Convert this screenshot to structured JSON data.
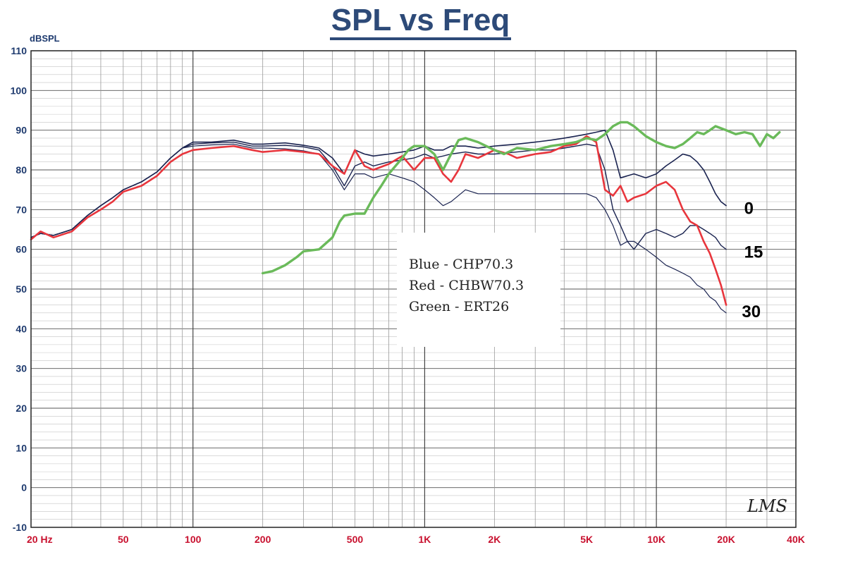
{
  "chart_data": {
    "type": "line",
    "title": "SPL vs Freq",
    "ylabel": "dBSPL",
    "xlabel": "",
    "xscale": "log",
    "xlim": [
      20,
      40000
    ],
    "ylim": [
      -10,
      110
    ],
    "grid": true,
    "y_ticks": [
      {
        "value": 110,
        "label": "110"
      },
      {
        "value": 100,
        "label": "100"
      },
      {
        "value": 90,
        "label": "90"
      },
      {
        "value": 80,
        "label": "80"
      },
      {
        "value": 70,
        "label": "70"
      },
      {
        "value": 60,
        "label": "60"
      },
      {
        "value": 50,
        "label": "50"
      },
      {
        "value": 40,
        "label": "40"
      },
      {
        "value": 30,
        "label": "30"
      },
      {
        "value": 20,
        "label": "20"
      },
      {
        "value": 10,
        "label": "10"
      },
      {
        "value": 0,
        "label": "0"
      },
      {
        "value": -10,
        "label": "-10"
      }
    ],
    "x_ticks": [
      {
        "value": 20,
        "label": "20 Hz"
      },
      {
        "value": 50,
        "label": "50"
      },
      {
        "value": 100,
        "label": "100"
      },
      {
        "value": 200,
        "label": "200"
      },
      {
        "value": 500,
        "label": "500"
      },
      {
        "value": 1000,
        "label": "1K"
      },
      {
        "value": 2000,
        "label": "2K"
      },
      {
        "value": 5000,
        "label": "5K"
      },
      {
        "value": 10000,
        "label": "10K"
      },
      {
        "value": 20000,
        "label": "20K"
      },
      {
        "value": 40000,
        "label": "40K"
      }
    ],
    "legend_lines": [
      "Blue - CHP70.3",
      "Red - CHBW70.3",
      "Green - ERT26"
    ],
    "annotations": [
      {
        "text": "0",
        "x": 22000,
        "y": 71
      },
      {
        "text": "15",
        "x": 22000,
        "y": 60
      },
      {
        "text": "30",
        "x": 21500,
        "y": 45
      }
    ],
    "watermark": "LMS",
    "series": [
      {
        "name": "Blue - CHP70.3 (0°)",
        "color": "#1a2350",
        "width": 1.6,
        "points": [
          [
            20,
            63
          ],
          [
            22,
            64
          ],
          [
            25,
            63.5
          ],
          [
            30,
            65
          ],
          [
            35,
            68.5
          ],
          [
            40,
            71
          ],
          [
            45,
            73
          ],
          [
            50,
            75
          ],
          [
            60,
            77
          ],
          [
            70,
            79.5
          ],
          [
            80,
            83
          ],
          [
            90,
            85.5
          ],
          [
            100,
            87
          ],
          [
            120,
            87
          ],
          [
            150,
            87.5
          ],
          [
            180,
            86.5
          ],
          [
            200,
            86.5
          ],
          [
            250,
            86.8
          ],
          [
            300,
            86.2
          ],
          [
            350,
            85.5
          ],
          [
            400,
            83
          ],
          [
            450,
            79
          ],
          [
            500,
            85
          ],
          [
            550,
            84
          ],
          [
            600,
            83.5
          ],
          [
            700,
            84
          ],
          [
            800,
            84.5
          ],
          [
            900,
            85
          ],
          [
            1000,
            86
          ],
          [
            1100,
            85
          ],
          [
            1200,
            85
          ],
          [
            1300,
            86
          ],
          [
            1500,
            86
          ],
          [
            1700,
            85.5
          ],
          [
            2000,
            86
          ],
          [
            2500,
            86.5
          ],
          [
            3000,
            87
          ],
          [
            3500,
            87.5
          ],
          [
            4000,
            88
          ],
          [
            4500,
            88.5
          ],
          [
            5000,
            89
          ],
          [
            5500,
            89.5
          ],
          [
            6000,
            90
          ],
          [
            6500,
            85
          ],
          [
            7000,
            78
          ],
          [
            8000,
            79
          ],
          [
            9000,
            78
          ],
          [
            10000,
            79
          ],
          [
            11000,
            81
          ],
          [
            12000,
            82.5
          ],
          [
            13000,
            84
          ],
          [
            14000,
            83.5
          ],
          [
            15000,
            82
          ],
          [
            16000,
            80
          ],
          [
            17000,
            77
          ],
          [
            18000,
            74
          ],
          [
            19000,
            72
          ],
          [
            20000,
            71
          ]
        ]
      },
      {
        "name": "Blue - CHP70.3 (15°)",
        "color": "#1a2350",
        "width": 1.4,
        "points": [
          [
            20,
            63
          ],
          [
            22,
            64
          ],
          [
            25,
            63.5
          ],
          [
            30,
            65
          ],
          [
            35,
            68.5
          ],
          [
            40,
            71
          ],
          [
            45,
            73
          ],
          [
            50,
            75
          ],
          [
            60,
            77
          ],
          [
            70,
            79.5
          ],
          [
            80,
            83
          ],
          [
            90,
            85.5
          ],
          [
            100,
            86.5
          ],
          [
            120,
            86.8
          ],
          [
            150,
            87
          ],
          [
            180,
            86
          ],
          [
            200,
            86
          ],
          [
            250,
            86.2
          ],
          [
            300,
            85.8
          ],
          [
            350,
            85
          ],
          [
            400,
            81
          ],
          [
            450,
            76
          ],
          [
            500,
            81
          ],
          [
            550,
            82
          ],
          [
            600,
            81
          ],
          [
            700,
            82
          ],
          [
            800,
            82.5
          ],
          [
            900,
            83
          ],
          [
            1000,
            84
          ],
          [
            1100,
            83
          ],
          [
            1200,
            83.5
          ],
          [
            1300,
            84
          ],
          [
            1500,
            84.5
          ],
          [
            1700,
            84
          ],
          [
            2000,
            84
          ],
          [
            2500,
            84.5
          ],
          [
            3000,
            85
          ],
          [
            3500,
            85
          ],
          [
            4000,
            85.5
          ],
          [
            4500,
            86
          ],
          [
            5000,
            86.5
          ],
          [
            5500,
            86
          ],
          [
            6000,
            80
          ],
          [
            6500,
            70
          ],
          [
            7000,
            66
          ],
          [
            7500,
            62
          ],
          [
            8000,
            60
          ],
          [
            9000,
            64
          ],
          [
            10000,
            65
          ],
          [
            11000,
            64
          ],
          [
            12000,
            63
          ],
          [
            13000,
            64
          ],
          [
            14000,
            66
          ],
          [
            15000,
            66
          ],
          [
            16000,
            65
          ],
          [
            17000,
            64
          ],
          [
            18000,
            63
          ],
          [
            19000,
            61
          ],
          [
            20000,
            60
          ]
        ]
      },
      {
        "name": "Blue - CHP70.3 (30°)",
        "color": "#1a2350",
        "width": 1.2,
        "points": [
          [
            20,
            63
          ],
          [
            22,
            64
          ],
          [
            25,
            63.5
          ],
          [
            30,
            65
          ],
          [
            35,
            68.5
          ],
          [
            40,
            71
          ],
          [
            45,
            73
          ],
          [
            50,
            75
          ],
          [
            60,
            77
          ],
          [
            70,
            79.5
          ],
          [
            80,
            83
          ],
          [
            90,
            85.5
          ],
          [
            100,
            86
          ],
          [
            120,
            86.3
          ],
          [
            150,
            86.5
          ],
          [
            180,
            85.5
          ],
          [
            200,
            85.5
          ],
          [
            250,
            85.3
          ],
          [
            300,
            84.8
          ],
          [
            350,
            84
          ],
          [
            400,
            80
          ],
          [
            450,
            75
          ],
          [
            500,
            79
          ],
          [
            550,
            79
          ],
          [
            600,
            78
          ],
          [
            700,
            79
          ],
          [
            800,
            78
          ],
          [
            900,
            77
          ],
          [
            1000,
            75
          ],
          [
            1100,
            73
          ],
          [
            1200,
            71
          ],
          [
            1300,
            72
          ],
          [
            1500,
            75
          ],
          [
            1700,
            74
          ],
          [
            2000,
            74
          ],
          [
            2500,
            74
          ],
          [
            3000,
            74
          ],
          [
            3500,
            74
          ],
          [
            4000,
            74
          ],
          [
            4500,
            74
          ],
          [
            5000,
            74
          ],
          [
            5500,
            73
          ],
          [
            6000,
            70
          ],
          [
            6500,
            66
          ],
          [
            7000,
            61
          ],
          [
            7500,
            62
          ],
          [
            8000,
            62
          ],
          [
            9000,
            60
          ],
          [
            10000,
            58
          ],
          [
            11000,
            56
          ],
          [
            12000,
            55
          ],
          [
            13000,
            54
          ],
          [
            14000,
            53
          ],
          [
            15000,
            51
          ],
          [
            16000,
            50
          ],
          [
            17000,
            48
          ],
          [
            18000,
            47
          ],
          [
            19000,
            45
          ],
          [
            20000,
            44
          ]
        ]
      },
      {
        "name": "Red - CHBW70.3",
        "color": "#e8363d",
        "width": 2.6,
        "points": [
          [
            20,
            62.5
          ],
          [
            22,
            64.5
          ],
          [
            25,
            63
          ],
          [
            30,
            64.5
          ],
          [
            35,
            68
          ],
          [
            40,
            70
          ],
          [
            45,
            72
          ],
          [
            50,
            74.5
          ],
          [
            60,
            76
          ],
          [
            70,
            78.5
          ],
          [
            80,
            82
          ],
          [
            90,
            84
          ],
          [
            100,
            85
          ],
          [
            120,
            85.5
          ],
          [
            150,
            86
          ],
          [
            180,
            85
          ],
          [
            200,
            84.5
          ],
          [
            250,
            85
          ],
          [
            300,
            84.5
          ],
          [
            350,
            84
          ],
          [
            400,
            81
          ],
          [
            450,
            79
          ],
          [
            500,
            85
          ],
          [
            550,
            81
          ],
          [
            600,
            80
          ],
          [
            700,
            81.5
          ],
          [
            800,
            83.5
          ],
          [
            900,
            80
          ],
          [
            1000,
            83
          ],
          [
            1100,
            83
          ],
          [
            1200,
            79
          ],
          [
            1300,
            77
          ],
          [
            1400,
            80
          ],
          [
            1500,
            84
          ],
          [
            1700,
            83
          ],
          [
            2000,
            85
          ],
          [
            2300,
            84
          ],
          [
            2500,
            83
          ],
          [
            3000,
            84
          ],
          [
            3500,
            84.5
          ],
          [
            4000,
            86
          ],
          [
            4500,
            86.5
          ],
          [
            5000,
            88.5
          ],
          [
            5500,
            87
          ],
          [
            6000,
            75
          ],
          [
            6500,
            73.5
          ],
          [
            7000,
            76
          ],
          [
            7500,
            72
          ],
          [
            8000,
            73
          ],
          [
            9000,
            74
          ],
          [
            10000,
            76
          ],
          [
            11000,
            77
          ],
          [
            12000,
            75
          ],
          [
            13000,
            70
          ],
          [
            14000,
            67
          ],
          [
            15000,
            66
          ],
          [
            16000,
            62
          ],
          [
            17000,
            59
          ],
          [
            18000,
            55
          ],
          [
            19000,
            51
          ],
          [
            20000,
            46
          ]
        ]
      },
      {
        "name": "Green - ERT26",
        "color": "#6aba5a",
        "width": 3.4,
        "points": [
          [
            200,
            54
          ],
          [
            220,
            54.5
          ],
          [
            250,
            56
          ],
          [
            280,
            58
          ],
          [
            300,
            59.5
          ],
          [
            350,
            60
          ],
          [
            400,
            63
          ],
          [
            430,
            67
          ],
          [
            450,
            68.5
          ],
          [
            500,
            69
          ],
          [
            550,
            69
          ],
          [
            600,
            73
          ],
          [
            650,
            76
          ],
          [
            700,
            79
          ],
          [
            800,
            83
          ],
          [
            850,
            85
          ],
          [
            900,
            86
          ],
          [
            1000,
            86
          ],
          [
            1100,
            84
          ],
          [
            1200,
            80
          ],
          [
            1300,
            84
          ],
          [
            1400,
            87.5
          ],
          [
            1500,
            88
          ],
          [
            1700,
            87
          ],
          [
            2000,
            85
          ],
          [
            2200,
            84
          ],
          [
            2500,
            85.5
          ],
          [
            3000,
            85
          ],
          [
            3500,
            86
          ],
          [
            4000,
            86.5
          ],
          [
            4500,
            87
          ],
          [
            5000,
            88
          ],
          [
            5500,
            87.5
          ],
          [
            6000,
            89
          ],
          [
            6500,
            91
          ],
          [
            7000,
            92
          ],
          [
            7500,
            92
          ],
          [
            8000,
            91
          ],
          [
            9000,
            88.5
          ],
          [
            10000,
            87
          ],
          [
            11000,
            86
          ],
          [
            12000,
            85.5
          ],
          [
            13000,
            86.5
          ],
          [
            14000,
            88
          ],
          [
            15000,
            89.5
          ],
          [
            16000,
            89
          ],
          [
            17000,
            90
          ],
          [
            18000,
            91
          ],
          [
            20000,
            90
          ],
          [
            22000,
            89
          ],
          [
            24000,
            89.5
          ],
          [
            26000,
            89
          ],
          [
            28000,
            86
          ],
          [
            30000,
            89
          ],
          [
            32000,
            88
          ],
          [
            34000,
            89.5
          ]
        ]
      }
    ]
  }
}
